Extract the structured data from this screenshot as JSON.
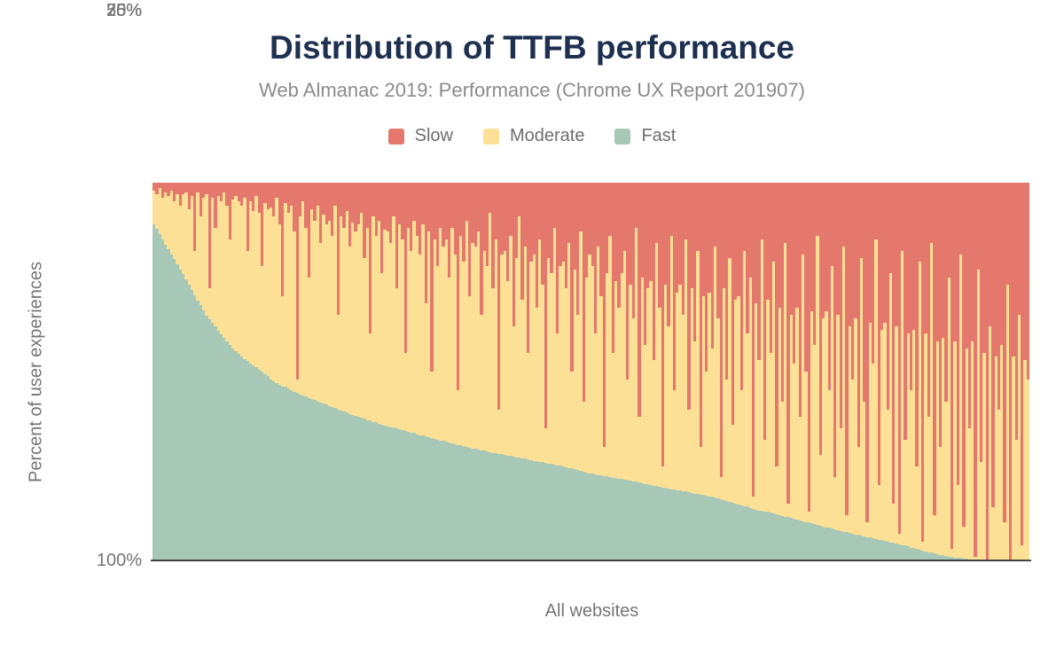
{
  "title": "Distribution of TTFB performance",
  "subtitle": "Web Almanac 2019: Performance (Chrome UX Report 201907)",
  "legend": [
    {
      "label": "Slow",
      "color": "#e4786c"
    },
    {
      "label": "Moderate",
      "color": "#fbe095"
    },
    {
      "label": "Fast",
      "color": "#a7c8b7"
    }
  ],
  "colors": {
    "slow": "#e4786c",
    "moderate": "#fbe095",
    "fast": "#a7c8b7",
    "title": "#1e3050",
    "subtitle": "#8b8b8b",
    "axis_text": "#757575",
    "axis_line": "#444444"
  },
  "chart_data": {
    "type": "bar",
    "stacked": true,
    "title": "Distribution of TTFB performance",
    "subtitle": "Web Almanac 2019: Performance (Chrome UX Report 201907)",
    "xlabel": "All websites",
    "ylabel": "Percent of user experiences",
    "ylim": [
      0,
      100
    ],
    "y_ticks": [
      "100%",
      "75%",
      "50%",
      "25%",
      "0%"
    ],
    "x_ticks": [],
    "grid": false,
    "legend_position": "top",
    "series_names": [
      "Slow",
      "Moderate",
      "Fast"
    ],
    "note": "Each thin bar is one website, sorted by percent of fast TTFB experiences descending; values are percents, moderate = 100 - fast - slow; bars sampled at 300 points",
    "bars": {
      "fast": [
        89,
        87.7,
        86.3,
        85,
        83.6,
        82.3,
        81,
        79.7,
        78.4,
        77.1,
        75.8,
        74.4,
        73,
        71.5,
        70.2,
        68.8,
        67.5,
        66.2,
        64.9,
        63.9,
        62.9,
        61.9,
        60.8,
        59.9,
        58.9,
        58,
        57,
        56.2,
        55.5,
        54.7,
        53.9,
        53.4,
        52.8,
        52.2,
        51.7,
        51.1,
        50.5,
        49.9,
        49.4,
        48.9,
        47.9,
        47.5,
        47,
        46.5,
        46,
        45.9,
        45.5,
        45.1,
        44.7,
        44.3,
        44,
        43.7,
        43.4,
        43,
        42.7,
        42.4,
        42.1,
        41.8,
        41.5,
        41.2,
        40.9,
        40.6,
        40.3,
        40,
        39.7,
        39.4,
        39.1,
        38.8,
        38.5,
        38.2,
        38,
        37.7,
        37.5,
        37.2,
        37,
        36.7,
        36.5,
        36.2,
        36,
        35.7,
        35.5,
        35.3,
        35.1,
        34.9,
        34.7,
        34.5,
        34.3,
        34.1,
        33.9,
        33.7,
        33.4,
        33.2,
        33,
        32.8,
        32.6,
        32.4,
        32.2,
        32,
        31.8,
        31.6,
        31.4,
        31.2,
        31,
        30.8,
        30.6,
        30.4,
        30.2,
        30,
        29.8,
        29.6,
        29.5,
        29.3,
        29.2,
        29,
        28.8,
        28.7,
        28.5,
        28.4,
        28.2,
        28.1,
        27.9,
        27.8,
        27.6,
        27.5,
        27.3,
        27.2,
        27,
        26.9,
        26.7,
        26.6,
        26.4,
        26.3,
        26.1,
        26,
        25.8,
        25.7,
        25.5,
        25.4,
        25.2,
        25.1,
        24.9,
        24.7,
        24.5,
        24.3,
        24.1,
        23.9,
        23.7,
        23.5,
        23.3,
        23.1,
        22.9,
        22.8,
        22.6,
        22.5,
        22.3,
        22.2,
        22.1,
        21.9,
        21.8,
        21.7,
        21.5,
        21.4,
        21.3,
        21.1,
        21,
        20.8,
        20.7,
        20.5,
        20.3,
        20.2,
        20,
        19.8,
        19.7,
        19.5,
        19.3,
        19.2,
        19,
        18.8,
        18.7,
        18.6,
        18.5,
        18.3,
        18.2,
        18,
        17.9,
        17.7,
        17.6,
        17.4,
        17.3,
        17.1,
        17,
        16.8,
        16.7,
        16.5,
        16.3,
        16,
        15.8,
        15.6,
        15.3,
        15.1,
        14.9,
        14.6,
        14.4,
        14.2,
        13.9,
        13.7,
        13.4,
        13.2,
        13.1,
        13,
        12.8,
        12.6,
        12.4,
        12.2,
        12,
        11.8,
        11.6,
        11.4,
        11.2,
        11,
        10.8,
        10.6,
        10.4,
        10.2,
        10,
        9.8,
        9.6,
        9.4,
        9.2,
        9,
        8.8,
        8.6,
        8.4,
        8.2,
        8,
        7.8,
        7.6,
        7.4,
        7.2,
        7,
        6.8,
        6.7,
        6.5,
        6.3,
        6.2,
        6,
        5.8,
        5.7,
        5.5,
        5.3,
        5.2,
        5,
        4.8,
        4.7,
        4.5,
        4.3,
        4.1,
        3.9,
        3.7,
        3.4,
        3.2,
        3,
        2.8,
        2.5,
        2.3,
        2.2,
        2,
        1.8,
        1.7,
        1.5,
        1.3,
        1.2,
        1,
        0.9,
        0.8,
        0.7,
        0.6,
        0.5,
        0.4,
        0.3,
        0.2,
        0.2,
        0.1,
        0.1,
        0,
        0,
        0,
        0,
        0,
        0,
        0,
        0,
        0,
        0,
        0,
        0,
        0,
        0,
        0,
        0
      ],
      "slow": [
        2,
        3,
        1.5,
        4,
        2.5,
        3.5,
        2,
        5,
        3,
        6,
        3,
        2.5,
        7,
        3.5,
        18,
        2.5,
        9,
        4,
        3,
        28,
        4,
        12,
        3.5,
        5,
        2.5,
        6,
        15,
        4.5,
        3.5,
        5,
        6,
        4,
        18,
        5,
        7.5,
        3.5,
        8,
        22,
        5.5,
        7,
        6.5,
        9,
        4,
        11,
        30,
        5.5,
        8,
        6,
        13,
        52,
        9,
        5,
        12,
        25,
        7,
        10,
        6,
        16,
        8.5,
        11,
        10,
        14,
        6,
        35,
        9,
        12,
        7.5,
        17,
        10.5,
        13,
        11,
        8,
        20,
        12,
        40,
        9,
        14,
        10,
        24,
        12.5,
        13,
        16,
        9,
        28,
        11,
        15,
        45,
        12,
        18,
        10,
        14,
        19,
        11,
        32,
        13,
        50,
        15,
        22,
        12,
        17,
        15,
        25,
        12,
        19,
        55,
        14,
        21,
        10,
        30,
        16,
        17,
        13,
        35,
        18,
        22,
        8,
        28,
        15,
        60,
        19,
        18,
        26,
        14,
        38,
        20,
        9,
        31,
        17,
        45,
        21,
        19,
        33,
        15,
        27,
        65,
        20,
        24,
        12,
        40,
        22,
        21,
        28,
        16,
        50,
        23,
        35,
        13,
        58,
        25,
        19,
        22,
        40,
        17,
        30,
        70,
        24,
        14,
        45,
        26,
        33,
        24,
        18,
        52,
        27,
        36,
        12,
        62,
        25,
        43,
        28,
        26,
        47,
        16,
        33,
        75,
        27,
        38,
        14,
        55,
        29,
        27,
        35,
        15,
        60,
        28,
        42,
        18,
        70,
        30,
        50,
        29,
        44,
        17,
        36,
        78,
        28,
        52,
        20,
        64,
        31,
        30,
        55,
        18,
        40,
        25,
        83,
        32,
        47,
        15,
        68,
        31,
        45,
        21,
        75,
        33,
        58,
        16,
        85,
        35,
        48,
        33,
        62,
        19,
        50,
        87,
        34,
        43,
        14,
        72,
        36,
        34,
        55,
        22,
        78,
        35,
        65,
        17,
        88,
        38,
        52,
        36,
        70,
        20,
        58,
        90,
        37,
        48,
        15,
        80,
        39,
        37,
        60,
        24,
        85,
        38,
        93,
        18,
        68,
        40,
        55,
        39,
        75,
        21,
        95,
        40,
        62,
        16,
        88,
        42,
        70,
        41,
        58,
        25,
        97,
        42,
        80,
        19,
        91,
        44,
        65,
        42,
        99,
        23,
        74,
        45,
        100,
        38,
        86,
        46,
        60,
        43,
        90,
        27,
        100,
        46,
        68,
        35,
        96,
        47,
        52
      ]
    }
  }
}
